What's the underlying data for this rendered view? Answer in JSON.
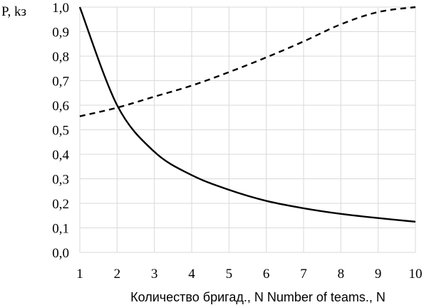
{
  "chart_data": {
    "type": "line",
    "ylabel": "P, kз",
    "xlabel": "Количество бригад., N  Number of teams., N",
    "xlim": [
      1,
      10
    ],
    "ylim": [
      0,
      1
    ],
    "grid": true,
    "x_ticks": [
      "1",
      "2",
      "3",
      "4",
      "5",
      "6",
      "7",
      "8",
      "9",
      "10"
    ],
    "y_ticks": [
      "0,0",
      "0,1",
      "0,2",
      "0,3",
      "0,4",
      "0,5",
      "0,6",
      "0,7",
      "0,8",
      "0,9",
      "1,0"
    ],
    "x": [
      1,
      2,
      3,
      4,
      5,
      6,
      7,
      8,
      9,
      10
    ],
    "series": [
      {
        "style": "solid",
        "values": [
          1.0,
          0.6,
          0.41,
          0.315,
          0.255,
          0.21,
          0.18,
          0.157,
          0.14,
          0.125
        ]
      },
      {
        "style": "dashed",
        "values": [
          0.555,
          0.59,
          0.635,
          0.68,
          0.735,
          0.795,
          0.86,
          0.93,
          0.98,
          1.0
        ]
      }
    ]
  }
}
